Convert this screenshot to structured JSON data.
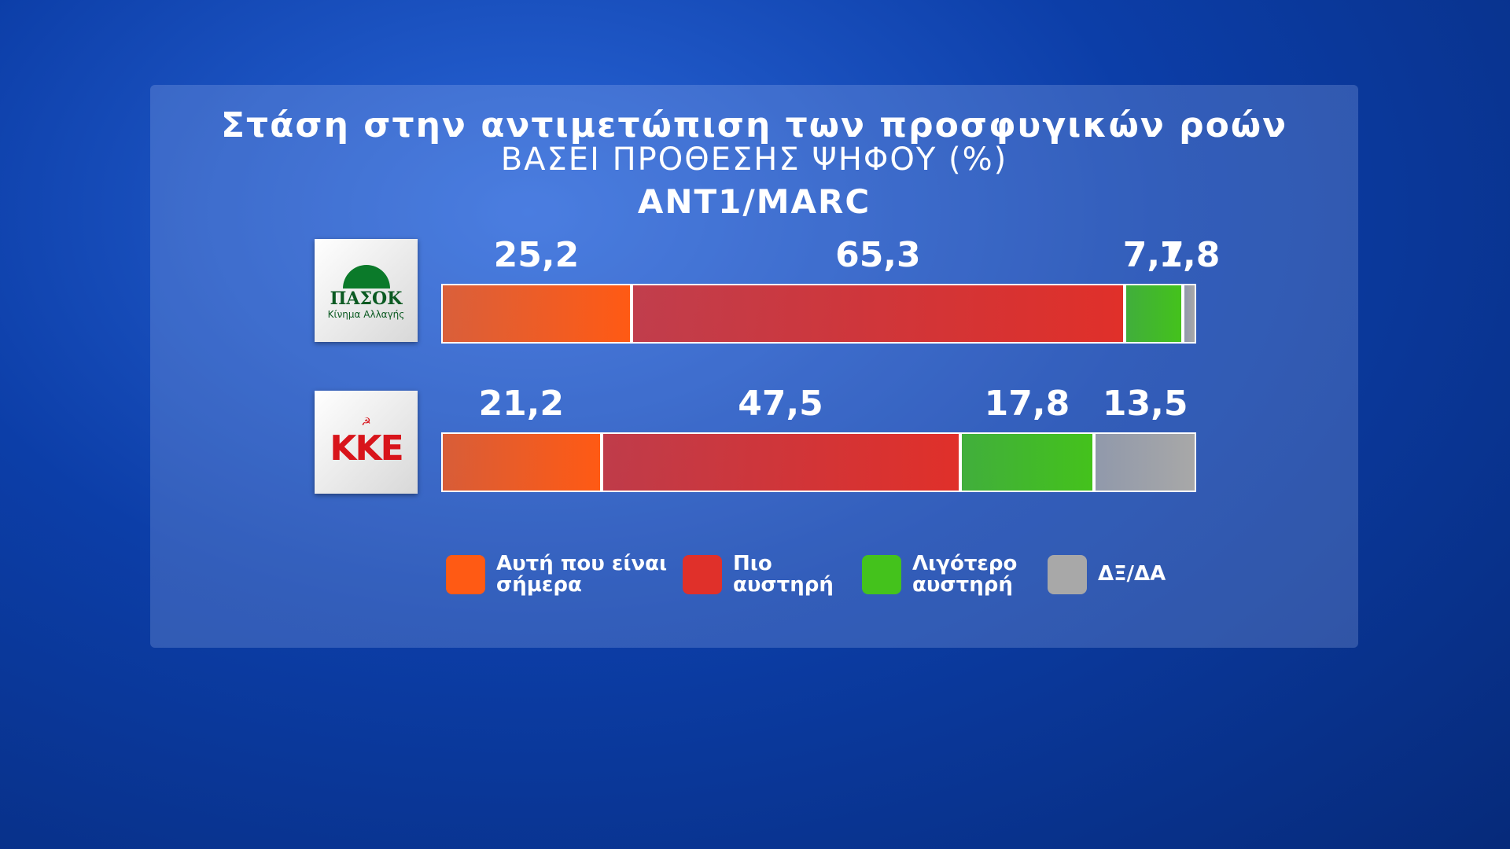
{
  "chart_data": {
    "type": "stacked-bar",
    "title": "Στάση στην αντιμετώπιση των προσφυγικών ροών",
    "subtitle": "ΒΑΣΕΙ ΠΡΟΘΕΣΗΣ ΨΗΦΟΥ (%)",
    "source": "ANT1/MARC",
    "categories": [
      "ΠΑΣΟΚ",
      "ΚΚΕ"
    ],
    "category_notes": [
      "Κίνημα Αλλαγής",
      null
    ],
    "series": [
      {
        "name": "Αυτή που είναι σήμερα",
        "color": "#ff5a14",
        "values": [
          25.2,
          21.2
        ],
        "value_labels": [
          "25,2",
          "21,2"
        ]
      },
      {
        "name": "Πιο αυστηρή",
        "color": "#e0302a",
        "values": [
          65.3,
          47.5
        ],
        "value_labels": [
          "65,3",
          "47,5"
        ]
      },
      {
        "name": "Λιγότερο αυστηρή",
        "color": "#44c21c",
        "values": [
          7.7,
          17.8
        ],
        "value_labels": [
          "7,7",
          "17,8"
        ]
      },
      {
        "name": "ΔΞ/ΔΑ",
        "color": "#a8a8a8",
        "values": [
          1.8,
          13.5
        ],
        "value_labels": [
          "1,8",
          "13,5"
        ]
      }
    ]
  }
}
